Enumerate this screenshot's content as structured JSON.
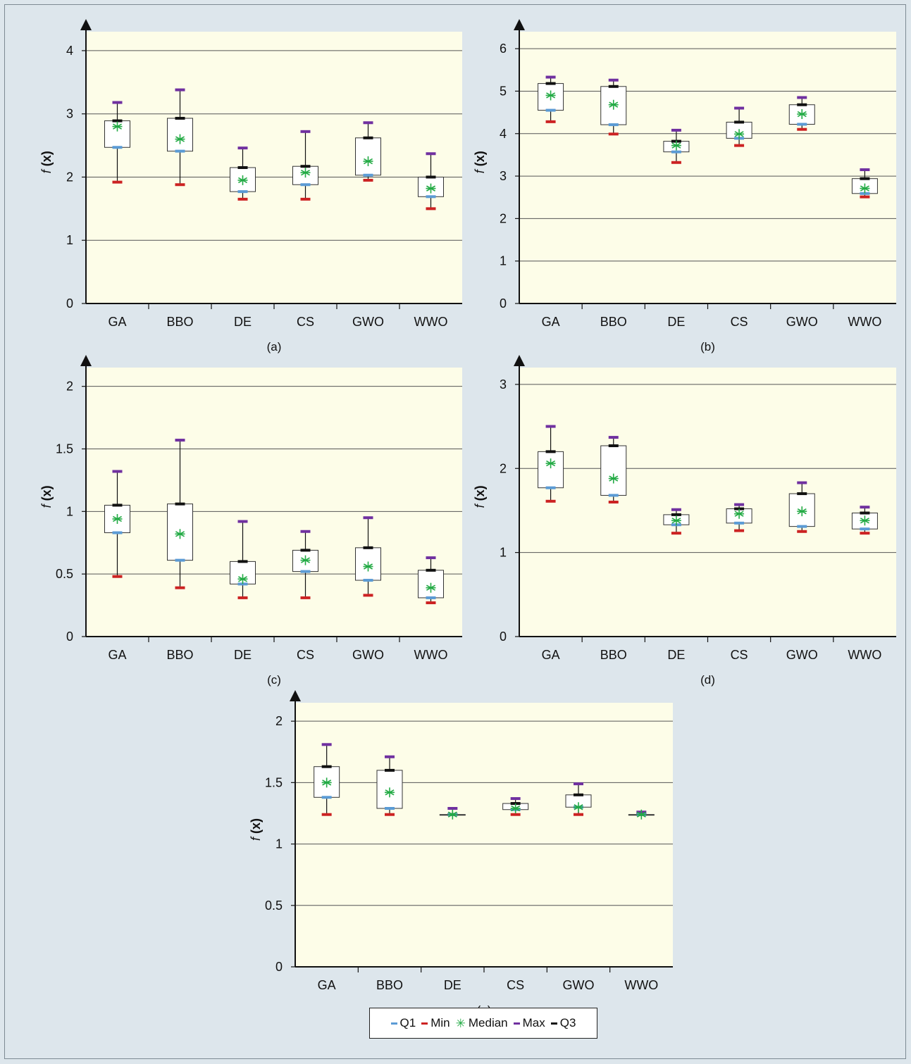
{
  "legend": {
    "items": [
      {
        "label": "Q1",
        "key": "q1"
      },
      {
        "label": "Min",
        "key": "min"
      },
      {
        "label": "Median",
        "key": "median"
      },
      {
        "label": "Max",
        "key": "max"
      },
      {
        "label": "Q3",
        "key": "q3"
      }
    ]
  },
  "colors": {
    "q1": "#5b9bd5",
    "min": "#cc2222",
    "median": "#22aa44",
    "max": "#7030a0",
    "q3": "#111111",
    "plot_bg": "#fdfde8",
    "figure_bg": "#dde6ec",
    "gridline": "#555555"
  },
  "chart_data": [
    {
      "type": "box",
      "panel_label": "(a)",
      "ylabel": "f (x)",
      "categories": [
        "GA",
        "BBO",
        "DE",
        "CS",
        "GWO",
        "WWO"
      ],
      "ylim": [
        0,
        4.3
      ],
      "yticks": [
        0,
        1,
        2,
        3,
        4
      ],
      "grid": true,
      "series": [
        {
          "category": "GA",
          "min": 1.92,
          "q1": 2.47,
          "median": 2.8,
          "q3": 2.89,
          "max": 3.18
        },
        {
          "category": "BBO",
          "min": 1.88,
          "q1": 2.41,
          "median": 2.6,
          "q3": 2.93,
          "max": 3.38
        },
        {
          "category": "DE",
          "min": 1.65,
          "q1": 1.77,
          "median": 1.95,
          "q3": 2.15,
          "max": 2.46
        },
        {
          "category": "CS",
          "min": 1.65,
          "q1": 1.88,
          "median": 2.07,
          "q3": 2.17,
          "max": 2.72
        },
        {
          "category": "GWO",
          "min": 1.95,
          "q1": 2.03,
          "median": 2.25,
          "q3": 2.62,
          "max": 2.86
        },
        {
          "category": "WWO",
          "min": 1.5,
          "q1": 1.69,
          "median": 1.82,
          "q3": 2.0,
          "max": 2.37
        }
      ]
    },
    {
      "type": "box",
      "panel_label": "(b)",
      "ylabel": "f (x)",
      "categories": [
        "GA",
        "BBO",
        "DE",
        "CS",
        "GWO",
        "WWO"
      ],
      "ylim": [
        0,
        6.4
      ],
      "yticks": [
        0,
        1,
        2,
        3,
        4,
        5,
        6
      ],
      "grid": true,
      "series": [
        {
          "category": "GA",
          "min": 4.28,
          "q1": 4.55,
          "median": 4.9,
          "q3": 5.18,
          "max": 5.33
        },
        {
          "category": "BBO",
          "min": 3.99,
          "q1": 4.21,
          "median": 4.68,
          "q3": 5.11,
          "max": 5.26
        },
        {
          "category": "DE",
          "min": 3.32,
          "q1": 3.57,
          "median": 3.72,
          "q3": 3.82,
          "max": 4.08
        },
        {
          "category": "CS",
          "min": 3.72,
          "q1": 3.89,
          "median": 3.99,
          "q3": 4.27,
          "max": 4.6
        },
        {
          "category": "GWO",
          "min": 4.1,
          "q1": 4.22,
          "median": 4.46,
          "q3": 4.68,
          "max": 4.85
        },
        {
          "category": "WWO",
          "min": 2.51,
          "q1": 2.59,
          "median": 2.71,
          "q3": 2.94,
          "max": 3.15
        }
      ]
    },
    {
      "type": "box",
      "panel_label": "(c)",
      "ylabel": "f (x)",
      "categories": [
        "GA",
        "BBO",
        "DE",
        "CS",
        "GWO",
        "WWO"
      ],
      "ylim": [
        0,
        2.15
      ],
      "yticks": [
        0,
        0.5,
        1,
        1.5,
        2
      ],
      "ytick_labels": [
        "0",
        "0.5",
        "1",
        "1.5",
        "2"
      ],
      "grid": true,
      "series": [
        {
          "category": "GA",
          "min": 0.48,
          "q1": 0.83,
          "median": 0.94,
          "q3": 1.05,
          "max": 1.32
        },
        {
          "category": "BBO",
          "min": 0.39,
          "q1": 0.61,
          "median": 0.82,
          "q3": 1.06,
          "max": 1.57
        },
        {
          "category": "DE",
          "min": 0.31,
          "q1": 0.42,
          "median": 0.46,
          "q3": 0.6,
          "max": 0.92
        },
        {
          "category": "CS",
          "min": 0.31,
          "q1": 0.52,
          "median": 0.61,
          "q3": 0.69,
          "max": 0.84
        },
        {
          "category": "GWO",
          "min": 0.33,
          "q1": 0.45,
          "median": 0.56,
          "q3": 0.71,
          "max": 0.95
        },
        {
          "category": "WWO",
          "min": 0.27,
          "q1": 0.31,
          "median": 0.39,
          "q3": 0.53,
          "max": 0.63
        }
      ]
    },
    {
      "type": "box",
      "panel_label": "(d)",
      "ylabel": "f (x)",
      "categories": [
        "GA",
        "BBO",
        "DE",
        "CS",
        "GWO",
        "WWO"
      ],
      "ylim": [
        0,
        3.2
      ],
      "yticks": [
        0,
        1,
        2,
        3
      ],
      "grid": true,
      "series": [
        {
          "category": "GA",
          "min": 1.61,
          "q1": 1.77,
          "median": 2.06,
          "q3": 2.2,
          "max": 2.5
        },
        {
          "category": "BBO",
          "min": 1.6,
          "q1": 1.68,
          "median": 1.88,
          "q3": 2.27,
          "max": 2.37
        },
        {
          "category": "DE",
          "min": 1.23,
          "q1": 1.33,
          "median": 1.38,
          "q3": 1.45,
          "max": 1.51
        },
        {
          "category": "CS",
          "min": 1.26,
          "q1": 1.35,
          "median": 1.46,
          "q3": 1.52,
          "max": 1.57
        },
        {
          "category": "GWO",
          "min": 1.25,
          "q1": 1.31,
          "median": 1.49,
          "q3": 1.7,
          "max": 1.83
        },
        {
          "category": "WWO",
          "min": 1.23,
          "q1": 1.28,
          "median": 1.38,
          "q3": 1.47,
          "max": 1.54
        }
      ]
    },
    {
      "type": "box",
      "panel_label": "(e)",
      "ylabel": "f (x)",
      "categories": [
        "GA",
        "BBO",
        "DE",
        "CS",
        "GWO",
        "WWO"
      ],
      "ylim": [
        0,
        2.15
      ],
      "yticks": [
        0,
        0.5,
        1,
        1.5,
        2
      ],
      "ytick_labels": [
        "0",
        "0.5",
        "1",
        "1.5",
        "2"
      ],
      "grid": true,
      "series": [
        {
          "category": "GA",
          "min": 1.24,
          "q1": 1.38,
          "median": 1.5,
          "q3": 1.63,
          "max": 1.81
        },
        {
          "category": "BBO",
          "min": 1.24,
          "q1": 1.29,
          "median": 1.42,
          "q3": 1.6,
          "max": 1.71
        },
        {
          "category": "DE",
          "min": 1.24,
          "q1": 1.24,
          "median": 1.24,
          "q3": 1.24,
          "max": 1.29
        },
        {
          "category": "CS",
          "min": 1.24,
          "q1": 1.28,
          "median": 1.29,
          "q3": 1.33,
          "max": 1.37
        },
        {
          "category": "GWO",
          "min": 1.24,
          "q1": 1.3,
          "median": 1.3,
          "q3": 1.4,
          "max": 1.49
        },
        {
          "category": "WWO",
          "min": 1.24,
          "q1": 1.24,
          "median": 1.24,
          "q3": 1.24,
          "max": 1.26
        }
      ]
    }
  ]
}
